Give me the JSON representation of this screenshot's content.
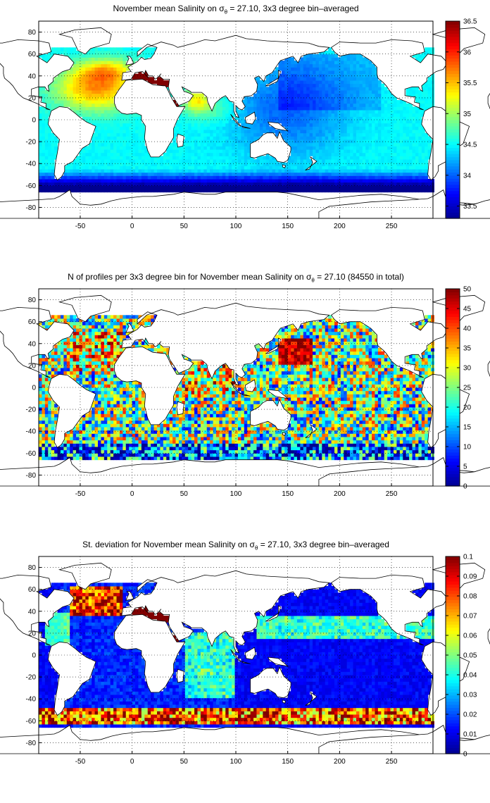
{
  "colors": {
    "jet": [
      "#00008f",
      "#0000ff",
      "#0080ff",
      "#00ffff",
      "#80ff80",
      "#ffff00",
      "#ff8000",
      "#ff0000",
      "#800000"
    ],
    "land": "#ffffff",
    "grid": "#000000"
  },
  "chart_data": [
    {
      "type": "heatmap",
      "title_parts": {
        "before": "November mean Salinity on ",
        "sigma": "σ",
        "sub": "θ",
        "after": " = 27.10, 3x3 degree bin–averaged"
      },
      "xlim": [
        -90,
        290
      ],
      "ylim": [
        -90,
        90
      ],
      "x_ticks": [
        -50,
        0,
        50,
        100,
        150,
        200,
        250
      ],
      "y_ticks": [
        80,
        60,
        40,
        20,
        0,
        -20,
        -40,
        -60,
        -80
      ],
      "grid": "dotted",
      "colorbar": {
        "range": [
          33.3,
          36.5
        ],
        "ticks": [
          "36.5",
          "36",
          "35.5",
          "35",
          "34.5",
          "34",
          "33.5"
        ],
        "tick_values": [
          36.5,
          36,
          35.5,
          35,
          34.5,
          34,
          33.5
        ]
      },
      "field": "salinity"
    },
    {
      "type": "heatmap",
      "title_parts": {
        "before": "N of profiles per 3x3 degree bin for November mean Salinity on ",
        "sigma": "σ",
        "sub": "θ",
        "after": " = 27.10 (84550 in total)"
      },
      "xlim": [
        -90,
        290
      ],
      "ylim": [
        -90,
        90
      ],
      "x_ticks": [
        -50,
        0,
        50,
        100,
        150,
        200,
        250
      ],
      "y_ticks": [
        80,
        60,
        40,
        20,
        0,
        -20,
        -40,
        -60,
        -80
      ],
      "grid": "dotted",
      "colorbar": {
        "range": [
          0,
          50
        ],
        "ticks": [
          "50",
          "45",
          "40",
          "35",
          "30",
          "25",
          "20",
          "15",
          "10",
          "5",
          "0"
        ],
        "tick_values": [
          50,
          45,
          40,
          35,
          30,
          25,
          20,
          15,
          10,
          5,
          0
        ]
      },
      "field": "count"
    },
    {
      "type": "heatmap",
      "title_parts": {
        "before": "St. deviation for November mean Salinity on ",
        "sigma": "σ",
        "sub": "θ",
        "after": " = 27.10, 3x3 degree bin–averaged"
      },
      "xlim": [
        -90,
        290
      ],
      "ylim": [
        -90,
        90
      ],
      "x_ticks": [
        -50,
        0,
        50,
        100,
        150,
        200,
        250
      ],
      "y_ticks": [
        80,
        60,
        40,
        20,
        0,
        -20,
        -40,
        -60,
        -80
      ],
      "grid": "dotted",
      "colorbar": {
        "range": [
          0,
          0.1
        ],
        "ticks": [
          "0.1",
          "0.09",
          "0.08",
          "0.07",
          "0.06",
          "0.05",
          "0.04",
          "0.03",
          "0.02",
          "0.01",
          "0"
        ],
        "tick_values": [
          0.1,
          0.09,
          0.08,
          0.07,
          0.06,
          0.05,
          0.04,
          0.03,
          0.02,
          0.01,
          0
        ]
      },
      "field": "stdev"
    }
  ]
}
